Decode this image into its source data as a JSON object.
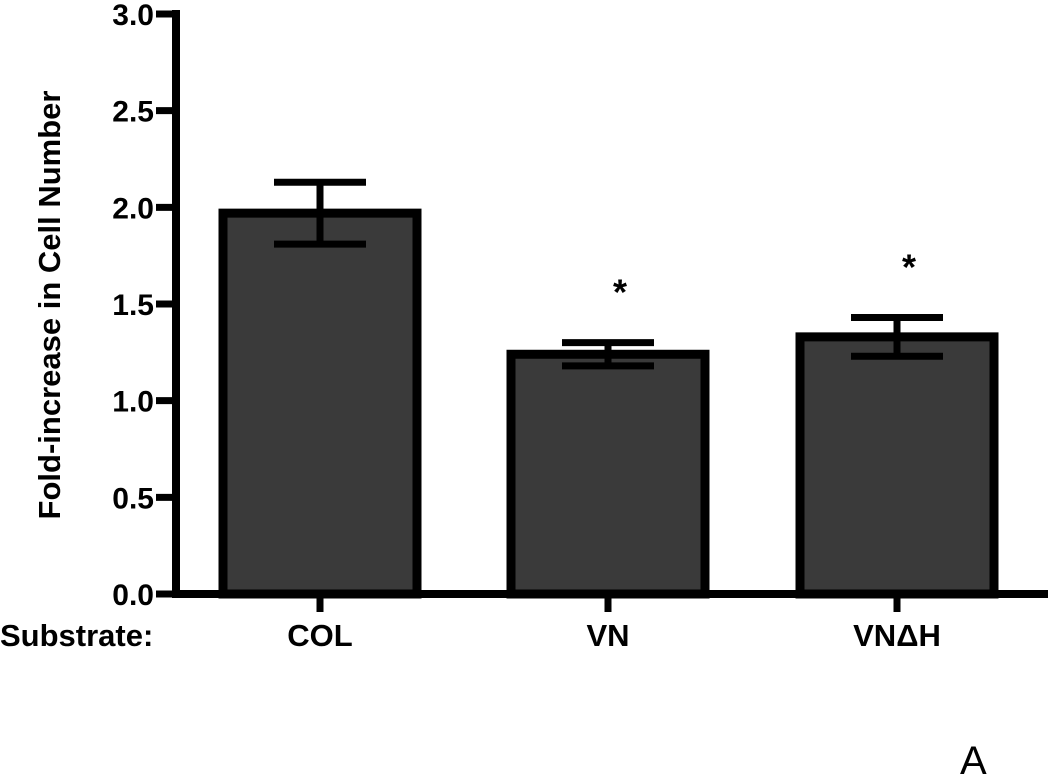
{
  "chart_data": {
    "type": "bar",
    "categories": [
      "COL",
      "VN",
      "VNΔH"
    ],
    "values": [
      1.97,
      1.24,
      1.33
    ],
    "errors": [
      0.16,
      0.06,
      0.1
    ],
    "significance": [
      "",
      "*",
      "*"
    ],
    "ylabel": "Fold-increase in Cell Number",
    "xlabel": "Substrate:",
    "ylim": [
      0,
      3.0
    ],
    "yticks": [
      "0.0",
      "0.5",
      "1.0",
      "1.5",
      "2.0",
      "2.5",
      "3.0"
    ],
    "bar_color": "#3a3a3a",
    "edge_color": "#000000",
    "grid": false,
    "panel_label": "A"
  }
}
